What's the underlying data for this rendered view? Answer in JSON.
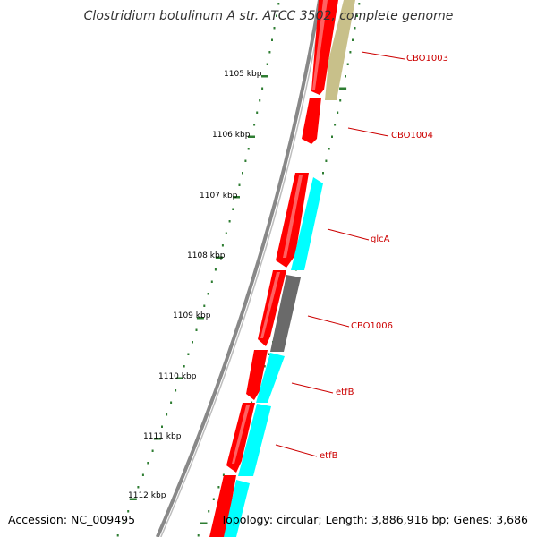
{
  "title": "Clostridium botulinum A str. ATCC 3502, complete genome",
  "footer": {
    "accession": "Accession: NC_009495",
    "topology": "Topology: circular; Length: 3,886,916 bp; Genes: 3,686"
  },
  "colors": {
    "forward_cds": "#ff0000",
    "reverse_cds_cyan": "#00ffff",
    "reverse_cds_olive": "#c8c08a",
    "reverse_cds_gray": "#6a6a6a",
    "backbone": "#888888",
    "tick": "#2e7d32",
    "label": "#cc0000"
  },
  "scale_ticks": [
    {
      "label": "1105 kbp"
    },
    {
      "label": "1106 kbp"
    },
    {
      "label": "1107 kbp"
    },
    {
      "label": "1108 kbp"
    },
    {
      "label": "1109 kbp"
    },
    {
      "label": "1110 kbp"
    },
    {
      "label": "1111 kbp"
    },
    {
      "label": "1112 kbp"
    }
  ],
  "gene_labels": [
    {
      "name": "CBO1003"
    },
    {
      "name": "CBO1004"
    },
    {
      "name": "glcA"
    },
    {
      "name": "CBO1006"
    },
    {
      "name": "etfB"
    },
    {
      "name": "etfB"
    }
  ]
}
